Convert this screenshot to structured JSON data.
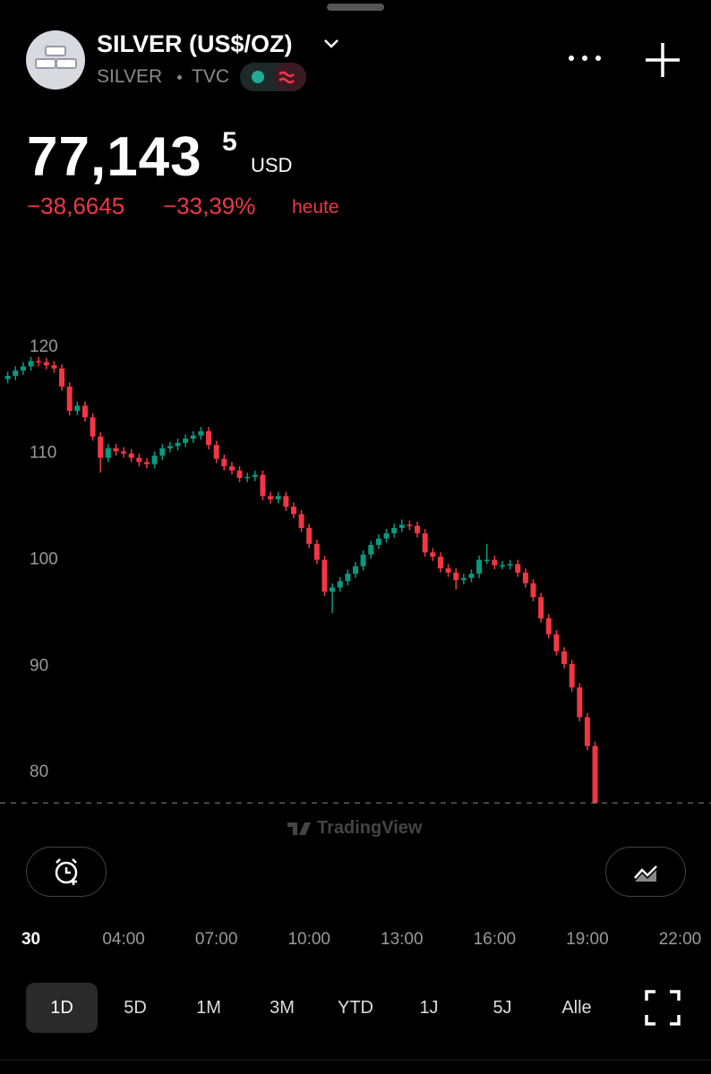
{
  "header": {
    "title": "SILVER (US$/OZ)",
    "symbol": "SILVER",
    "exchange": "TVC"
  },
  "price": {
    "main": "77,143",
    "sup": "5",
    "currency": "USD",
    "change": "−38,6645",
    "change_pct": "−33,39%",
    "period": "heute"
  },
  "watermark": "TradingView",
  "timeframes": [
    "1D",
    "5D",
    "1M",
    "3M",
    "YTD",
    "1J",
    "5J",
    "Alle"
  ],
  "chart_data": {
    "type": "candlestick",
    "up_color": "#089981",
    "down_color": "#f23645",
    "xlim": [
      0,
      23
    ],
    "ylim": [
      76.9,
      127.4
    ],
    "yticks": [
      80,
      90,
      100,
      110,
      120
    ],
    "xticks": [
      {
        "value": 1,
        "label": "30"
      },
      {
        "value": 4,
        "label": "04:00"
      },
      {
        "value": 7,
        "label": "07:00"
      },
      {
        "value": 10,
        "label": "10:00"
      },
      {
        "value": 13,
        "label": "13:00"
      },
      {
        "value": 16,
        "label": "16:00"
      },
      {
        "value": 19,
        "label": "19:00"
      },
      {
        "value": 22,
        "label": "22:00"
      }
    ],
    "x": [
      0.25,
      0.5,
      0.75,
      1.0,
      1.25,
      1.5,
      1.75,
      2.0,
      2.25,
      2.5,
      2.75,
      3.0,
      3.25,
      3.5,
      3.75,
      4.0,
      4.25,
      4.5,
      4.75,
      5.0,
      5.25,
      5.5,
      5.75,
      6.0,
      6.25,
      6.5,
      6.75,
      7.0,
      7.25,
      7.5,
      7.75,
      8.0,
      8.25,
      8.5,
      8.75,
      9.0,
      9.25,
      9.5,
      9.75,
      10.0,
      10.25,
      10.5,
      10.75,
      11.0,
      11.25,
      11.5,
      11.75,
      12.0,
      12.25,
      12.5,
      12.75,
      13.0,
      13.25,
      13.5,
      13.75,
      14.0,
      14.25,
      14.5,
      14.75,
      15.0,
      15.25,
      15.5,
      15.75,
      16.0,
      16.25,
      16.5,
      16.75,
      17.0,
      17.25,
      17.5,
      17.75,
      18.0,
      18.25,
      18.5,
      18.75,
      19.0,
      19.25
    ],
    "open": [
      117.0,
      117.3,
      117.8,
      118.2,
      118.7,
      118.6,
      118.3,
      118.0,
      116.3,
      114.0,
      114.5,
      113.4,
      111.6,
      109.6,
      110.5,
      110.2,
      110.0,
      109.6,
      109.2,
      109.0,
      109.8,
      110.5,
      110.7,
      111.0,
      111.4,
      111.7,
      112.1,
      110.8,
      109.5,
      108.8,
      108.4,
      107.7,
      107.8,
      108.0,
      106.0,
      105.7,
      106.0,
      105.0,
      104.3,
      103.0,
      101.5,
      100.0,
      97.0,
      97.4,
      98.0,
      98.7,
      99.4,
      100.5,
      101.4,
      102.0,
      102.5,
      103.0,
      103.3,
      103.2,
      102.5,
      100.7,
      100.3,
      99.2,
      98.8,
      98.1,
      98.3,
      98.7,
      100.0,
      100.0,
      99.5,
      99.5,
      99.6,
      98.8,
      97.8,
      96.5,
      94.5,
      93.0,
      91.4,
      90.2,
      88.0,
      85.2,
      82.5
    ],
    "high": [
      117.7,
      118.2,
      118.6,
      119.1,
      119.1,
      119.0,
      118.7,
      118.4,
      116.7,
      114.9,
      114.9,
      113.8,
      112.0,
      110.9,
      110.9,
      110.6,
      110.4,
      110.0,
      109.6,
      110.2,
      110.9,
      111.1,
      111.4,
      111.8,
      112.1,
      112.5,
      112.5,
      111.2,
      109.9,
      109.2,
      108.8,
      108.2,
      108.4,
      108.4,
      106.4,
      106.4,
      106.4,
      105.4,
      104.7,
      103.4,
      101.9,
      100.4,
      97.8,
      98.4,
      99.1,
      99.8,
      100.9,
      101.8,
      102.4,
      102.9,
      103.4,
      103.8,
      103.7,
      103.6,
      102.9,
      101.1,
      100.7,
      99.6,
      99.2,
      98.7,
      99.1,
      100.4,
      101.5,
      100.4,
      99.9,
      100.0,
      100.0,
      99.2,
      98.2,
      96.9,
      94.9,
      93.4,
      91.8,
      90.6,
      88.4,
      85.6,
      82.9
    ],
    "low": [
      116.6,
      116.9,
      117.4,
      117.8,
      118.2,
      117.9,
      117.6,
      115.9,
      113.6,
      113.6,
      113.0,
      111.2,
      108.2,
      109.2,
      109.8,
      109.6,
      109.2,
      108.8,
      108.6,
      108.6,
      109.4,
      110.1,
      110.3,
      110.6,
      111.0,
      111.3,
      110.4,
      109.1,
      108.4,
      108.0,
      107.3,
      107.3,
      107.4,
      105.6,
      105.3,
      105.3,
      104.6,
      103.9,
      102.6,
      101.1,
      99.6,
      96.6,
      95.0,
      97.0,
      97.6,
      98.3,
      99.0,
      100.1,
      101.0,
      101.6,
      102.1,
      102.6,
      102.8,
      102.1,
      100.3,
      99.9,
      98.8,
      98.4,
      97.2,
      97.7,
      97.9,
      98.3,
      99.6,
      99.1,
      99.1,
      99.1,
      98.4,
      97.4,
      96.1,
      94.1,
      92.6,
      91.0,
      89.8,
      87.6,
      84.8,
      82.1,
      77.1
    ],
    "close": [
      117.3,
      117.8,
      118.2,
      118.7,
      118.6,
      118.3,
      118.0,
      116.3,
      114.0,
      114.5,
      113.4,
      111.6,
      109.6,
      110.5,
      110.2,
      110.0,
      109.6,
      109.2,
      109.0,
      109.8,
      110.5,
      110.7,
      111.0,
      111.4,
      111.7,
      112.1,
      110.8,
      109.5,
      108.8,
      108.4,
      107.7,
      107.8,
      108.0,
      106.0,
      105.7,
      106.0,
      105.0,
      104.3,
      103.0,
      101.5,
      100.0,
      97.0,
      97.4,
      98.0,
      98.7,
      99.4,
      100.5,
      101.4,
      102.0,
      102.5,
      103.0,
      103.3,
      103.2,
      102.5,
      100.7,
      100.3,
      99.2,
      98.8,
      98.1,
      98.3,
      98.7,
      100.0,
      100.0,
      99.5,
      99.5,
      99.6,
      98.8,
      97.8,
      96.5,
      94.5,
      93.0,
      91.4,
      90.2,
      88.0,
      85.2,
      82.5,
      77.1435
    ]
  }
}
